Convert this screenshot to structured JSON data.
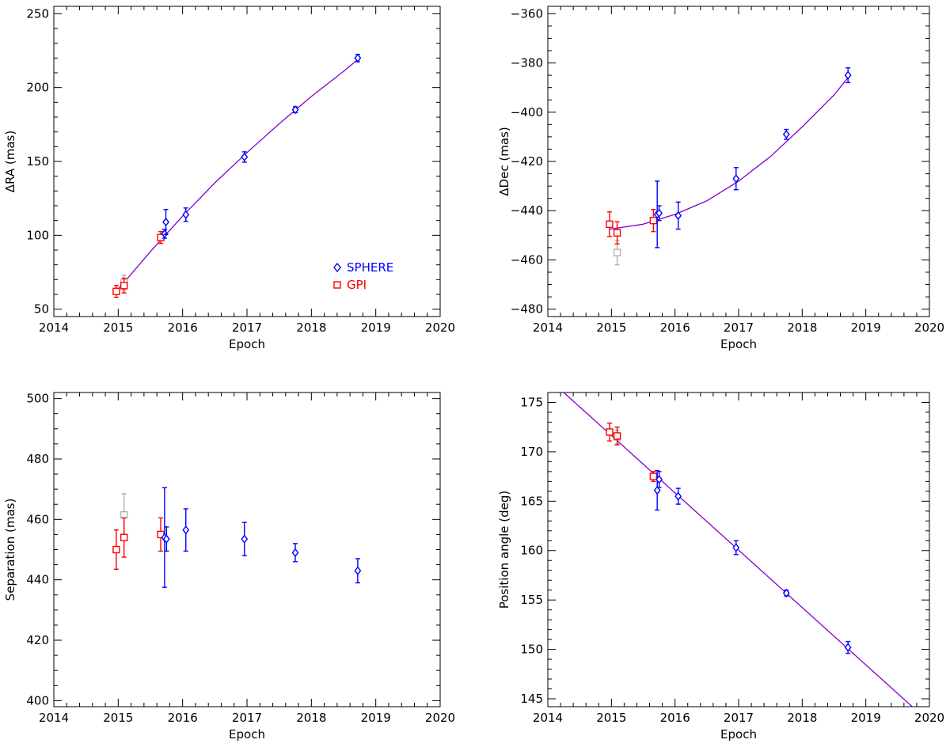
{
  "colors": {
    "sphere": "#0000ff",
    "gpi": "#ff0000",
    "gpi_grey": "#b0b0b0",
    "fit": "#8000d0",
    "axes": "#000000"
  },
  "chart_data": [
    {
      "id": "dra",
      "type": "scatter",
      "title": "",
      "xlabel": "Epoch",
      "ylabel": "ΔRA (mas)",
      "xlim": [
        2014,
        2020
      ],
      "ylim": [
        45,
        255
      ],
      "xticks": [
        "2014",
        "2015",
        "2016",
        "2017",
        "2018",
        "2019",
        "2020"
      ],
      "yticks": [
        "50",
        "100",
        "150",
        "200",
        "250"
      ],
      "legend": {
        "position": "bottom-right",
        "entries": [
          {
            "label": "SPHERE",
            "marker": "diamond",
            "color": "#0000ff"
          },
          {
            "label": "GPI",
            "marker": "square",
            "color": "#ff0000"
          }
        ]
      },
      "series": [
        {
          "name": "SPHERE",
          "marker": "diamond",
          "color": "#0000ff",
          "points": [
            {
              "x": 2015.72,
              "y": 101,
              "err": 3
            },
            {
              "x": 2015.74,
              "y": 109,
              "err": 8.5
            },
            {
              "x": 2016.05,
              "y": 114,
              "err": 4.5
            },
            {
              "x": 2016.96,
              "y": 153,
              "err": 3.5
            },
            {
              "x": 2017.75,
              "y": 185,
              "err": 2
            },
            {
              "x": 2018.72,
              "y": 220,
              "err": 2.5
            }
          ]
        },
        {
          "name": "GPI",
          "marker": "square",
          "color": "#ff0000",
          "points": [
            {
              "x": 2014.97,
              "y": 62,
              "err": 4
            },
            {
              "x": 2015.09,
              "y": 66,
              "err": 5
            },
            {
              "x": 2015.66,
              "y": 98.5,
              "err": 4
            }
          ]
        },
        {
          "name": "GPI (grey)",
          "marker": "square",
          "color": "#b0b0b0",
          "points": [
            {
              "x": 2015.09,
              "y": 68,
              "err": 5
            }
          ]
        }
      ],
      "fit": {
        "color": "#8000d0",
        "x": [
          2014.97,
          2015.5,
          2016.0,
          2016.5,
          2017.0,
          2017.5,
          2018.0,
          2018.5,
          2018.72
        ],
        "y": [
          62,
          89,
          113,
          135.5,
          156,
          175.5,
          194,
          211,
          219
        ]
      }
    },
    {
      "id": "ddec",
      "type": "scatter",
      "title": "",
      "xlabel": "Epoch",
      "ylabel": "ΔDec (mas)",
      "xlim": [
        2014,
        2020
      ],
      "ylim": [
        -483,
        -357
      ],
      "xticks": [
        "2014",
        "2015",
        "2016",
        "2017",
        "2018",
        "2019",
        "2020"
      ],
      "yticks": [
        "−480",
        "−460",
        "−440",
        "−420",
        "−400",
        "−380",
        "−360"
      ],
      "yticks_values": [
        -480,
        -460,
        -440,
        -420,
        -400,
        -380,
        -360
      ],
      "series": [
        {
          "name": "SPHERE",
          "marker": "diamond",
          "color": "#0000ff",
          "points": [
            {
              "x": 2015.72,
              "y": -441.5,
              "err": 13.5
            },
            {
              "x": 2015.75,
              "y": -441,
              "err": 3
            },
            {
              "x": 2016.05,
              "y": -442,
              "err": 5.5
            },
            {
              "x": 2016.96,
              "y": -427,
              "err": 4.5
            },
            {
              "x": 2017.75,
              "y": -409,
              "err": 2
            },
            {
              "x": 2018.72,
              "y": -385,
              "err": 3
            }
          ]
        },
        {
          "name": "GPI",
          "marker": "square",
          "color": "#ff0000",
          "points": [
            {
              "x": 2014.97,
              "y": -445.5,
              "err": 5
            },
            {
              "x": 2015.09,
              "y": -449,
              "err": 4.5
            },
            {
              "x": 2015.66,
              "y": -444,
              "err": 4.5
            }
          ]
        },
        {
          "name": "GPI (grey)",
          "marker": "square",
          "color": "#b0b0b0",
          "points": [
            {
              "x": 2015.09,
              "y": -457,
              "err": 5
            }
          ]
        }
      ],
      "fit": {
        "color": "#8000d0",
        "x": [
          2014.97,
          2015.5,
          2016.0,
          2016.5,
          2017.0,
          2017.5,
          2018.0,
          2018.5,
          2018.72
        ],
        "y": [
          -447.5,
          -445.5,
          -441.5,
          -436,
          -428,
          -418,
          -406,
          -393,
          -386
        ]
      }
    },
    {
      "id": "sep",
      "type": "scatter",
      "title": "",
      "xlabel": "Epoch",
      "ylabel": "Separation (mas)",
      "xlim": [
        2014,
        2020
      ],
      "ylim": [
        398,
        502
      ],
      "xticks": [
        "2014",
        "2015",
        "2016",
        "2017",
        "2018",
        "2019",
        "2020"
      ],
      "yticks": [
        "400",
        "420",
        "440",
        "460",
        "480",
        "500"
      ],
      "series": [
        {
          "name": "SPHERE",
          "marker": "diamond",
          "color": "#0000ff",
          "points": [
            {
              "x": 2015.72,
              "y": 454,
              "err": 16.5
            },
            {
              "x": 2015.75,
              "y": 453.5,
              "err": 4
            },
            {
              "x": 2016.05,
              "y": 456.5,
              "err": 7
            },
            {
              "x": 2016.96,
              "y": 453.5,
              "err": 5.5
            },
            {
              "x": 2017.75,
              "y": 449,
              "err": 3
            },
            {
              "x": 2018.72,
              "y": 443,
              "err": 4
            }
          ]
        },
        {
          "name": "GPI",
          "marker": "square",
          "color": "#ff0000",
          "points": [
            {
              "x": 2014.97,
              "y": 450,
              "err": 6.5
            },
            {
              "x": 2015.09,
              "y": 454,
              "err": 6.5
            },
            {
              "x": 2015.66,
              "y": 455,
              "err": 5.5
            }
          ]
        },
        {
          "name": "GPI (grey)",
          "marker": "square",
          "color": "#b0b0b0",
          "points": [
            {
              "x": 2015.09,
              "y": 461.5,
              "err": 7
            }
          ]
        }
      ]
    },
    {
      "id": "pa",
      "type": "scatter",
      "title": "",
      "xlabel": "Epoch",
      "ylabel": "Position angle (deg)",
      "xlim": [
        2014,
        2020
      ],
      "ylim": [
        144.2,
        176
      ],
      "xticks": [
        "2014",
        "2015",
        "2016",
        "2017",
        "2018",
        "2019",
        "2020"
      ],
      "yticks": [
        "145",
        "150",
        "155",
        "160",
        "165",
        "170",
        "175"
      ],
      "series": [
        {
          "name": "SPHERE",
          "marker": "diamond",
          "color": "#0000ff",
          "points": [
            {
              "x": 2015.72,
              "y": 166.1,
              "err": 2
            },
            {
              "x": 2015.75,
              "y": 167.2,
              "err": 0.8
            },
            {
              "x": 2016.05,
              "y": 165.5,
              "err": 0.8
            },
            {
              "x": 2016.96,
              "y": 160.3,
              "err": 0.7
            },
            {
              "x": 2017.75,
              "y": 155.7,
              "err": 0.3
            },
            {
              "x": 2018.72,
              "y": 150.2,
              "err": 0.6
            }
          ]
        },
        {
          "name": "GPI",
          "marker": "square",
          "color": "#ff0000",
          "points": [
            {
              "x": 2014.97,
              "y": 172,
              "err": 0.9
            },
            {
              "x": 2015.09,
              "y": 171.6,
              "err": 0.9
            },
            {
              "x": 2015.66,
              "y": 167.5,
              "err": 0.5
            }
          ]
        },
        {
          "name": "GPI (grey)",
          "marker": "square",
          "color": "#b0b0b0",
          "points": [
            {
              "x": 2015.09,
              "y": 171.5,
              "err": 0.7
            }
          ]
        }
      ],
      "fit": {
        "color": "#8000d0",
        "x": [
          2014.25,
          2019.73
        ],
        "y": [
          176,
          144.2
        ]
      }
    }
  ]
}
